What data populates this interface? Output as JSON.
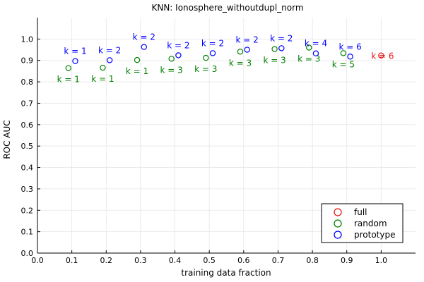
{
  "chart_data": {
    "type": "scatter",
    "title": "KNN: Ionosphere_withoutdupl_norm",
    "xlabel": "training data fraction",
    "ylabel": "ROC AUC",
    "xlim": [
      0.0,
      1.1
    ],
    "ylim": [
      0.0,
      1.1
    ],
    "xticks": [
      "0.0",
      "0.1",
      "0.2",
      "0.3",
      "0.4",
      "0.5",
      "0.6",
      "0.7",
      "0.8",
      "0.9",
      "1.0"
    ],
    "yticks": [
      "0.0",
      "0.1",
      "0.2",
      "0.3",
      "0.4",
      "0.5",
      "0.6",
      "0.7",
      "0.8",
      "0.9",
      "1.0"
    ],
    "grid": true,
    "legend_position": "bottom-right",
    "series": [
      {
        "name": "full",
        "color": "#e41a1c",
        "points": [
          {
            "x": 1.0,
            "y": 0.923,
            "label": "k = 6"
          }
        ]
      },
      {
        "name": "random",
        "color": "#008000",
        "points": [
          {
            "x": 0.09,
            "y": 0.864,
            "label": "k = 1"
          },
          {
            "x": 0.19,
            "y": 0.866,
            "label": "k = 1"
          },
          {
            "x": 0.29,
            "y": 0.902,
            "label": "k = 1"
          },
          {
            "x": 0.39,
            "y": 0.908,
            "label": "k = 3"
          },
          {
            "x": 0.49,
            "y": 0.912,
            "label": "k = 3"
          },
          {
            "x": 0.59,
            "y": 0.941,
            "label": "k = 3"
          },
          {
            "x": 0.69,
            "y": 0.953,
            "label": "k = 3"
          },
          {
            "x": 0.79,
            "y": 0.96,
            "label": "k = 3"
          },
          {
            "x": 0.89,
            "y": 0.934,
            "label": "k = 5"
          }
        ]
      },
      {
        "name": "prototype",
        "color": "#0000ff",
        "points": [
          {
            "x": 0.11,
            "y": 0.897,
            "label": "k = 1"
          },
          {
            "x": 0.21,
            "y": 0.901,
            "label": "k = 2"
          },
          {
            "x": 0.31,
            "y": 0.963,
            "label": "k = 2"
          },
          {
            "x": 0.41,
            "y": 0.924,
            "label": "k = 2"
          },
          {
            "x": 0.51,
            "y": 0.934,
            "label": "k = 2"
          },
          {
            "x": 0.61,
            "y": 0.95,
            "label": "k = 2"
          },
          {
            "x": 0.71,
            "y": 0.957,
            "label": "k = 2"
          },
          {
            "x": 0.81,
            "y": 0.933,
            "label": "k = 4"
          },
          {
            "x": 0.91,
            "y": 0.918,
            "label": "k = 6"
          }
        ]
      }
    ]
  }
}
